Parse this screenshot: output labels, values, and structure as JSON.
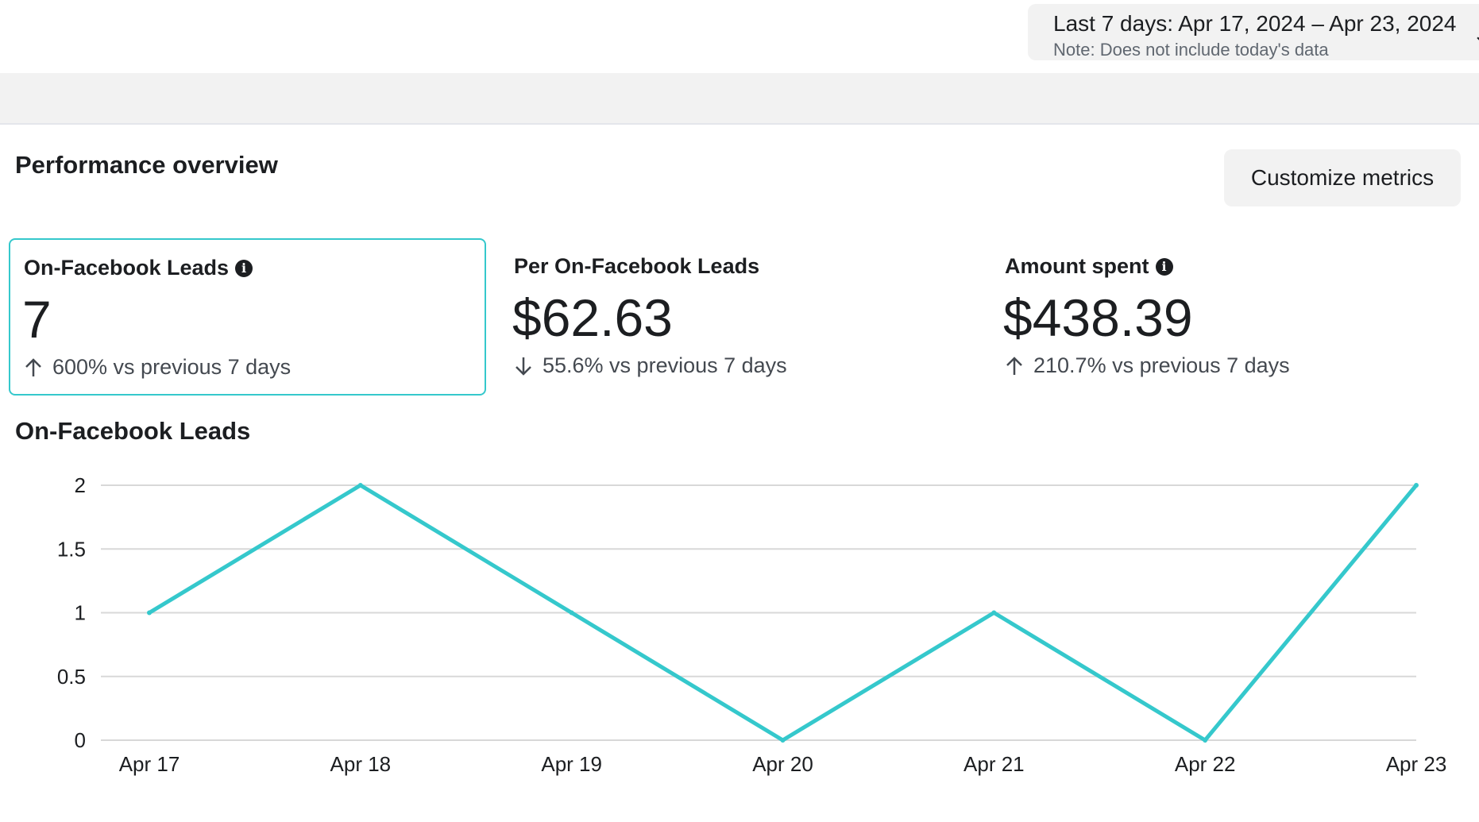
{
  "date_range": {
    "label": "Last 7 days: Apr 17, 2024 – Apr 23, 2024",
    "note": "Note: Does not include today's data"
  },
  "overview": {
    "title": "Performance overview",
    "customize_label": "Customize metrics"
  },
  "metrics": [
    {
      "label": "On-Facebook Leads",
      "value": "7",
      "delta": "600% vs previous 7 days",
      "direction": "up",
      "has_info": true,
      "selected": true
    },
    {
      "label": "Per On-Facebook Leads",
      "value": "$62.63",
      "delta": "55.6% vs previous 7 days",
      "direction": "down",
      "has_info": false,
      "selected": false
    },
    {
      "label": "Amount spent",
      "value": "$438.39",
      "delta": "210.7% vs previous 7 days",
      "direction": "up",
      "has_info": true,
      "selected": false
    }
  ],
  "colors": {
    "accent": "#35c8cc",
    "grid": "#d8d8d8"
  },
  "chart_data": {
    "type": "line",
    "title": "On-Facebook Leads",
    "categories": [
      "Apr 17",
      "Apr 18",
      "Apr 19",
      "Apr 20",
      "Apr 21",
      "Apr 22",
      "Apr 23"
    ],
    "series": [
      {
        "values": [
          1,
          2,
          1,
          0,
          1,
          0,
          2
        ]
      }
    ],
    "yticks": [
      "0",
      "0.5",
      "1",
      "1.5",
      "2"
    ],
    "ylim": [
      0,
      2
    ],
    "grid": true
  }
}
